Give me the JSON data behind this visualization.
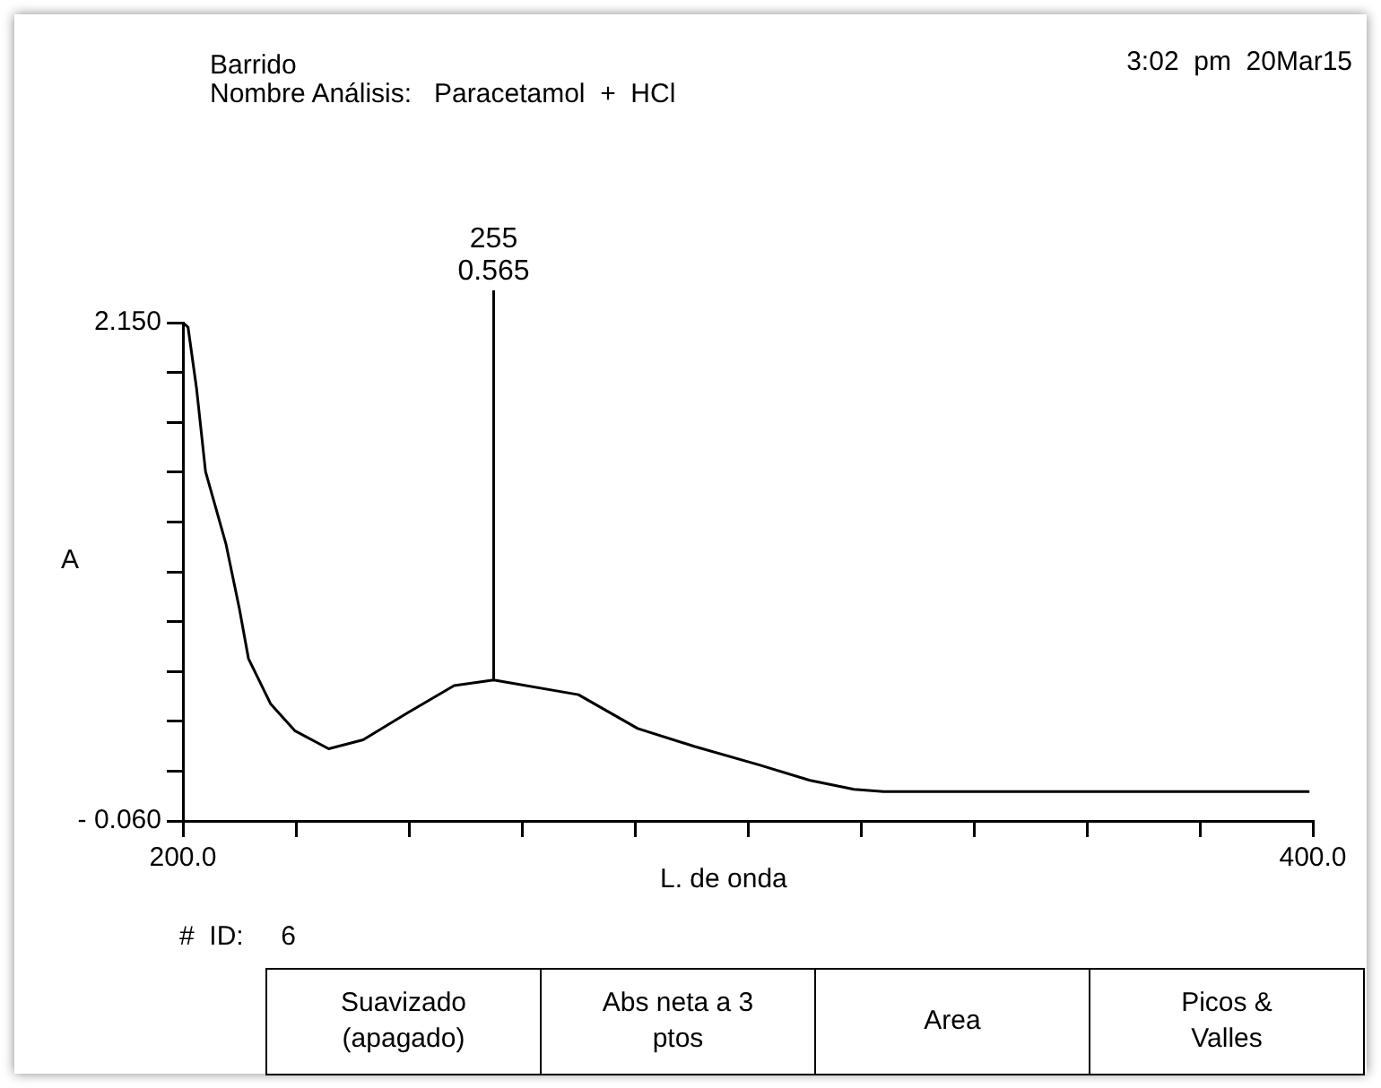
{
  "chart_data": {
    "type": "line",
    "title": "Barrido",
    "subtitle": "Nombre Análisis:   Paracetamol  +  HCl",
    "xlabel": "L. de onda",
    "ylabel": "A",
    "x": [
      200,
      200.9,
      202.4,
      204,
      207.6,
      210,
      211.6,
      215.5,
      219.8,
      225.8,
      231.9,
      239.8,
      248,
      255,
      270,
      280.5,
      290.6,
      301.8,
      311,
      318.8,
      324,
      340,
      360,
      380,
      399.4
    ],
    "series": [
      {
        "color": "#000000",
        "values": [
          2.15,
          2.13,
          1.86,
          1.49,
          1.17,
          0.88,
          0.66,
          0.46,
          0.34,
          0.26,
          0.3,
          0.42,
          0.54,
          0.565,
          0.5,
          0.35,
          0.27,
          0.19,
          0.12,
          0.08,
          0.07,
          0.07,
          0.07,
          0.07,
          0.07
        ]
      }
    ],
    "xlim": [
      200,
      400
    ],
    "ylim": [
      -0.06,
      2.15
    ],
    "xticks": [
      {
        "value": 200,
        "label": "200.0"
      },
      {
        "value": 220,
        "label": null
      },
      {
        "value": 240,
        "label": null
      },
      {
        "value": 260,
        "label": null
      },
      {
        "value": 280,
        "label": null
      },
      {
        "value": 300,
        "label": null
      },
      {
        "value": 320,
        "label": null
      },
      {
        "value": 340,
        "label": null
      },
      {
        "value": 360,
        "label": null
      },
      {
        "value": 380,
        "label": null
      },
      {
        "value": 400,
        "label": "400.0"
      }
    ],
    "yticks": [
      {
        "value": -0.06,
        "label": "- 0.060"
      },
      {
        "value": 0.161,
        "label": null
      },
      {
        "value": 0.382,
        "label": null
      },
      {
        "value": 0.603,
        "label": null
      },
      {
        "value": 0.824,
        "label": null
      },
      {
        "value": 1.045,
        "label": null
      },
      {
        "value": 1.266,
        "label": null
      },
      {
        "value": 1.487,
        "label": null
      },
      {
        "value": 1.708,
        "label": null
      },
      {
        "value": 1.929,
        "label": null
      },
      {
        "value": 2.15,
        "label": "2.150"
      }
    ],
    "marker": "none",
    "grid": false,
    "annotations": [
      "3:02  pm  20Mar15",
      "#  ID:     6",
      "Suavizado (apagado)",
      "Abs neta a 3 ptos",
      "Area",
      "Picos & Valles",
      {
        "text": "255\n0.565",
        "x": 255,
        "y": 0.565
      }
    ]
  }
}
